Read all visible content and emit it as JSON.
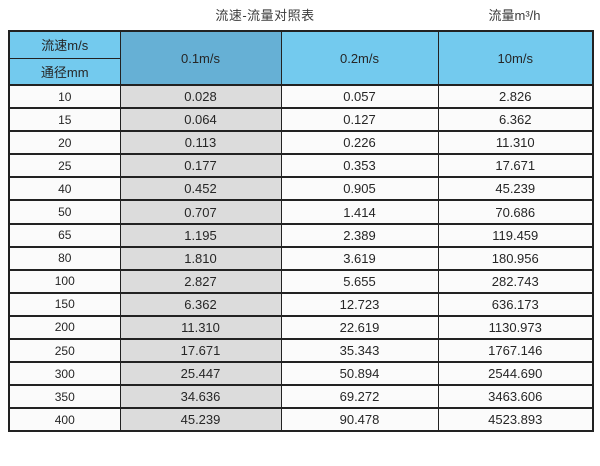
{
  "page": {
    "title": "流速-流量对照表",
    "unit_label": "流量m³/h"
  },
  "colors": {
    "header-blue": "#73CAEE",
    "header-blue-dark": "#66B0D5",
    "gray-col": "#dcdcdc",
    "cell-bg": "#fbfbfb",
    "border-dark": "#222222"
  },
  "chart_data": {
    "type": "table",
    "title": "流速-流量对照表",
    "unit_label": "流量m³/h",
    "header": {
      "corner_top": "流速m/s",
      "corner_bottom": "通径mm",
      "columns": [
        "0.1m/s",
        "0.2m/s",
        "10m/s"
      ]
    },
    "rows": [
      {
        "diameter_mm": "10",
        "values": [
          "0.028",
          "0.057",
          "2.826"
        ]
      },
      {
        "diameter_mm": "15",
        "values": [
          "0.064",
          "0.127",
          "6.362"
        ]
      },
      {
        "diameter_mm": "20",
        "values": [
          "0.113",
          "0.226",
          "11.310"
        ]
      },
      {
        "diameter_mm": "25",
        "values": [
          "0.177",
          "0.353",
          "17.671"
        ]
      },
      {
        "diameter_mm": "40",
        "values": [
          "0.452",
          "0.905",
          "45.239"
        ]
      },
      {
        "diameter_mm": "50",
        "values": [
          "0.707",
          "1.414",
          "70.686"
        ]
      },
      {
        "diameter_mm": "65",
        "values": [
          "1.195",
          "2.389",
          "119.459"
        ]
      },
      {
        "diameter_mm": "80",
        "values": [
          "1.810",
          "3.619",
          "180.956"
        ]
      },
      {
        "diameter_mm": "100",
        "values": [
          "2.827",
          "5.655",
          "282.743"
        ]
      },
      {
        "diameter_mm": "150",
        "values": [
          "6.362",
          "12.723",
          "636.173"
        ]
      },
      {
        "diameter_mm": "200",
        "values": [
          "11.310",
          "22.619",
          "1130.973"
        ]
      },
      {
        "diameter_mm": "250",
        "values": [
          "17.671",
          "35.343",
          "1767.146"
        ]
      },
      {
        "diameter_mm": "300",
        "values": [
          "25.447",
          "50.894",
          "2544.690"
        ]
      },
      {
        "diameter_mm": "350",
        "values": [
          "34.636",
          "69.272",
          "3463.606"
        ]
      },
      {
        "diameter_mm": "400",
        "values": [
          "45.239",
          "90.478",
          "4523.893"
        ]
      }
    ]
  }
}
